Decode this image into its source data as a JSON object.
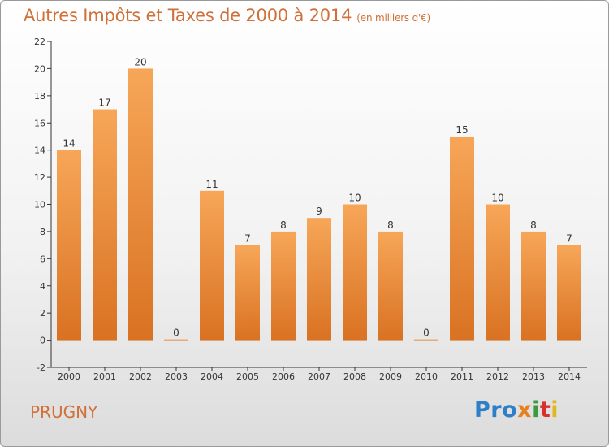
{
  "header": {
    "title": "Autres Impôts et Taxes de 2000 à 2014",
    "subtitle": "(en milliers d'€)"
  },
  "commune": "PRUGNY",
  "logo": {
    "parts": [
      "Pro",
      "x",
      "i",
      "t",
      "i"
    ]
  },
  "chart_data": {
    "type": "bar",
    "title": "Autres Impôts et Taxes de 2000 à 2014",
    "subtitle": "(en milliers d'€)",
    "categories": [
      "2000",
      "2001",
      "2002",
      "2003",
      "2004",
      "2005",
      "2006",
      "2007",
      "2008",
      "2009",
      "2010",
      "2011",
      "2012",
      "2013",
      "2014"
    ],
    "values": [
      14,
      17,
      20,
      0,
      11,
      7,
      8,
      9,
      10,
      8,
      0,
      15,
      10,
      8,
      7
    ],
    "ylim": [
      -2,
      22
    ],
    "yticks": [
      -2,
      0,
      2,
      4,
      6,
      8,
      10,
      12,
      14,
      16,
      18,
      20,
      22
    ],
    "grid": false,
    "legend": "none",
    "colors": {
      "bar_top": "#f7a658",
      "bar_bottom": "#d97222",
      "title": "#d0703a",
      "axis": "#333333"
    }
  }
}
